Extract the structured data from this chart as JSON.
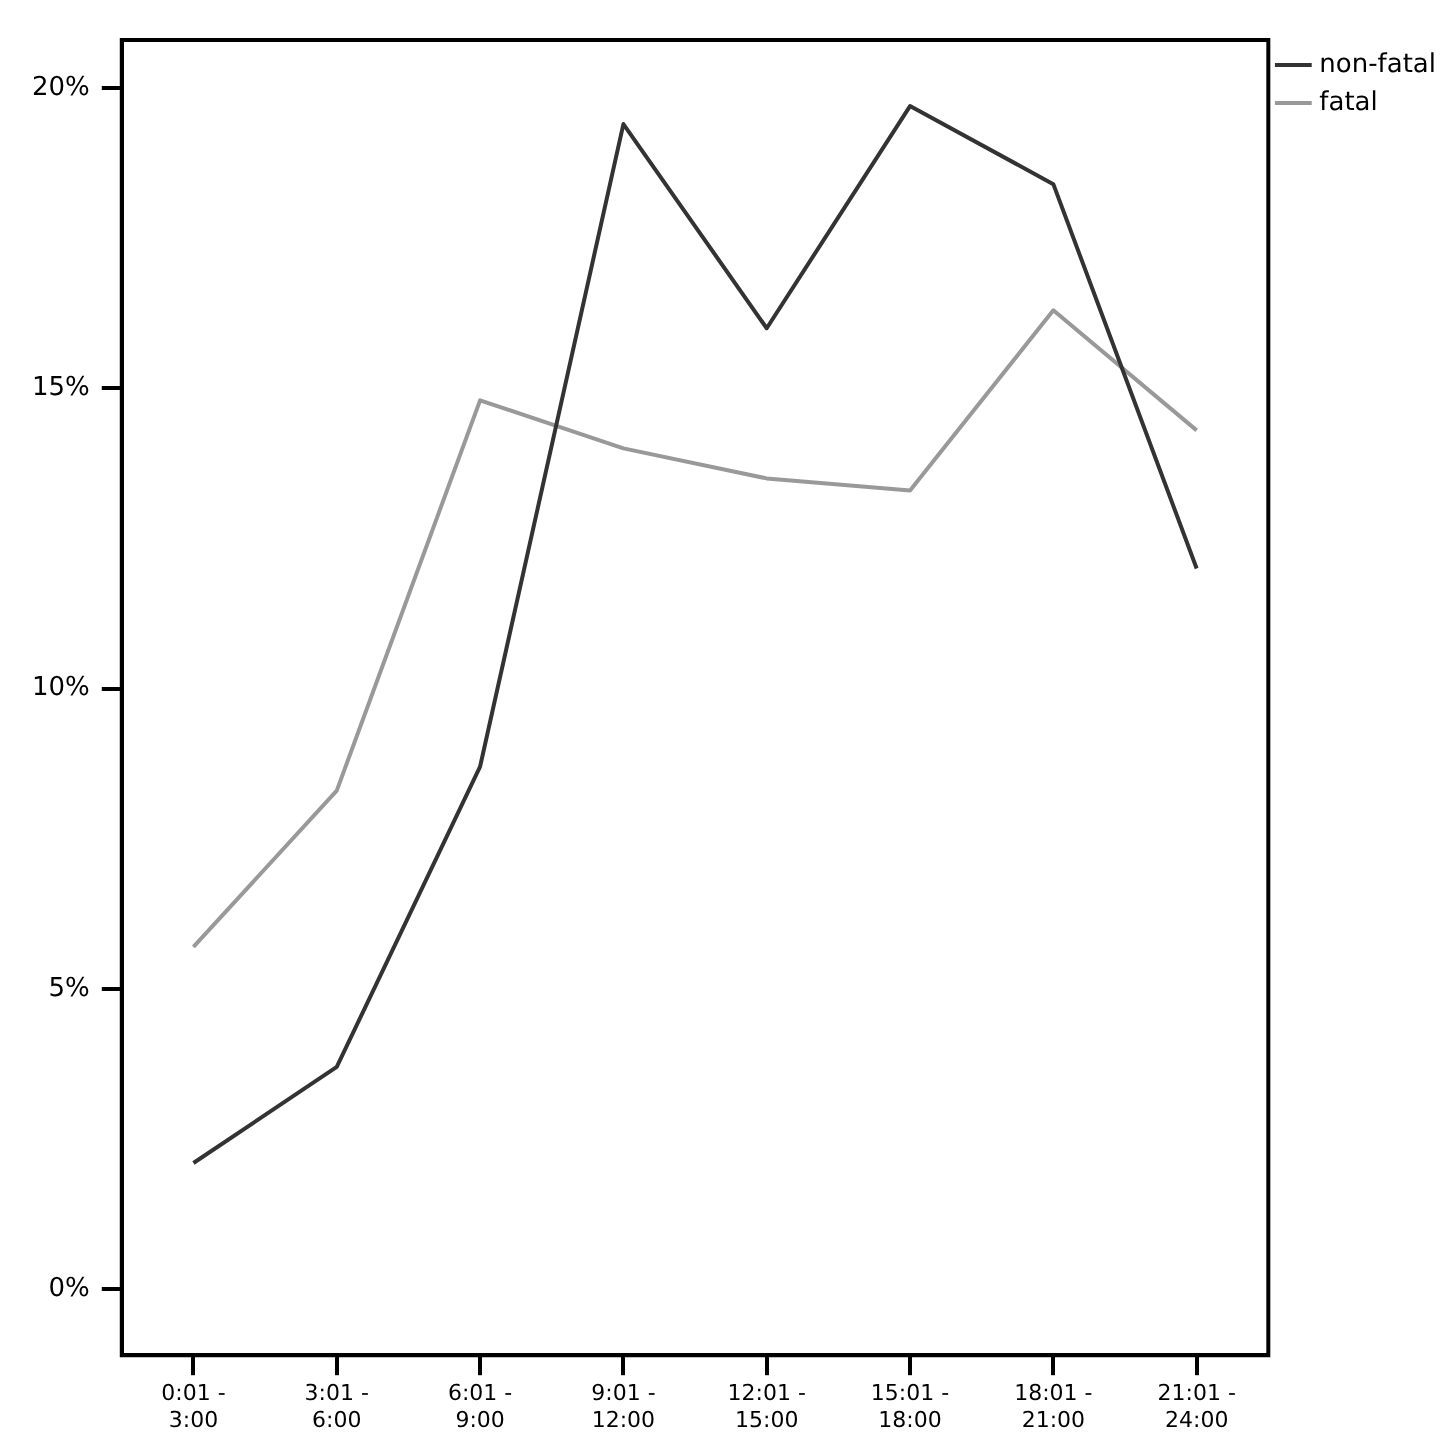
{
  "chart_data": {
    "type": "line",
    "categories": [
      "0:01 - 3:00",
      "3:01 - 6:00",
      "6:01 - 9:00",
      "9:01 - 12:00",
      "12:01 - 15:00",
      "15:01 - 18:00",
      "18:01 - 21:00",
      "21:01 - 24:00"
    ],
    "series": [
      {
        "name": "non-fatal",
        "color": "#333333",
        "values": [
          2.1,
          3.7,
          8.7,
          19.4,
          16.0,
          19.7,
          18.4,
          12.0
        ]
      },
      {
        "name": "fatal",
        "color": "#999999",
        "values": [
          5.7,
          8.3,
          14.8,
          14.0,
          13.5,
          13.3,
          16.3,
          14.3
        ]
      }
    ],
    "ylim": [
      -1.1,
      20.8
    ],
    "yticks": [
      {
        "value": 0,
        "label": "0%"
      },
      {
        "value": 5,
        "label": "5%"
      },
      {
        "value": 10,
        "label": "10%"
      },
      {
        "value": 15,
        "label": "15%"
      },
      {
        "value": 20,
        "label": "20%"
      }
    ],
    "grid": false,
    "legend": "top right",
    "marker": "none",
    "line_style": "solid"
  }
}
